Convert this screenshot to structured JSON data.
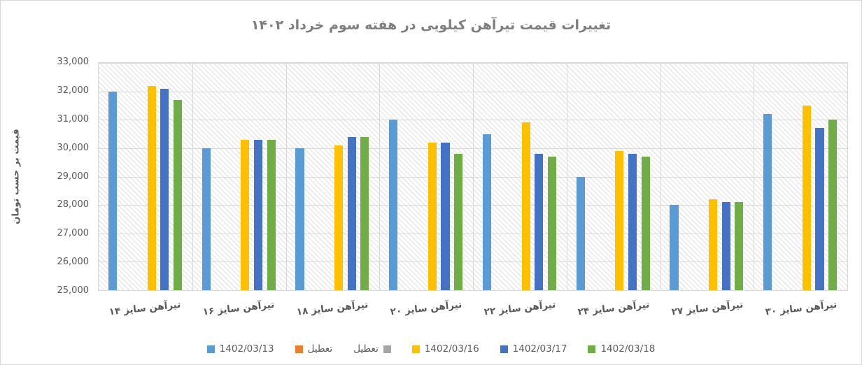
{
  "page": {
    "background": "#ffffff",
    "border_color": "#d9d9d9",
    "title_color": "#7f7f7f",
    "axis_text_color": "#595959",
    "gridline_color": "#d9d9d9"
  },
  "chart_data": {
    "type": "bar",
    "title": "تغییرات قیمت تیرآهن کیلویی در هفته سوم خرداد ۱۴۰۲",
    "xlabel": "",
    "ylabel": "قیمت بر حسب تومان",
    "ylim": [
      25000,
      33000
    ],
    "ytick_step": 1000,
    "ytick_labels": [
      "33,000",
      "32,000",
      "31,000",
      "30,000",
      "29,000",
      "28,000",
      "27,000",
      "26,000",
      "25,000"
    ],
    "grid": true,
    "plot_background": "diagonal-hatch",
    "legend_position": "bottom",
    "categories": [
      "تیرآهن سایز ۱۴",
      "تیرآهن سایز ۱۶",
      "تیرآهن سایز ۱۸",
      "تیرآهن سایز ۲۰",
      "تیرآهن سایز ۲۲",
      "تیرآهن سایز ۲۴",
      "تیرآهن سایز ۲۷",
      "تیرآهن سایز ۳۰"
    ],
    "series": [
      {
        "name": "1402/03/13",
        "color": "#5B9BD5",
        "values": [
          32000,
          30000,
          30000,
          31000,
          30500,
          29000,
          28000,
          31200
        ]
      },
      {
        "name": "تعطیل",
        "color": "#ED7D31",
        "values": [
          null,
          null,
          null,
          null,
          null,
          null,
          null,
          null
        ]
      },
      {
        "name": "تعطیل",
        "color": "#A5A5A5",
        "swatch_right": true,
        "values": [
          null,
          null,
          null,
          null,
          null,
          null,
          null,
          null
        ]
      },
      {
        "name": "1402/03/16",
        "color": "#FFC000",
        "values": [
          32200,
          30300,
          30100,
          30200,
          30900,
          29900,
          28200,
          31500
        ]
      },
      {
        "name": "1402/03/17",
        "color": "#4472C4",
        "values": [
          32100,
          30300,
          30400,
          30200,
          29800,
          29800,
          28100,
          30700
        ]
      },
      {
        "name": "1402/03/18",
        "color": "#70AD47",
        "values": [
          31700,
          30300,
          30400,
          29800,
          29700,
          29700,
          28100,
          31000
        ]
      }
    ]
  }
}
